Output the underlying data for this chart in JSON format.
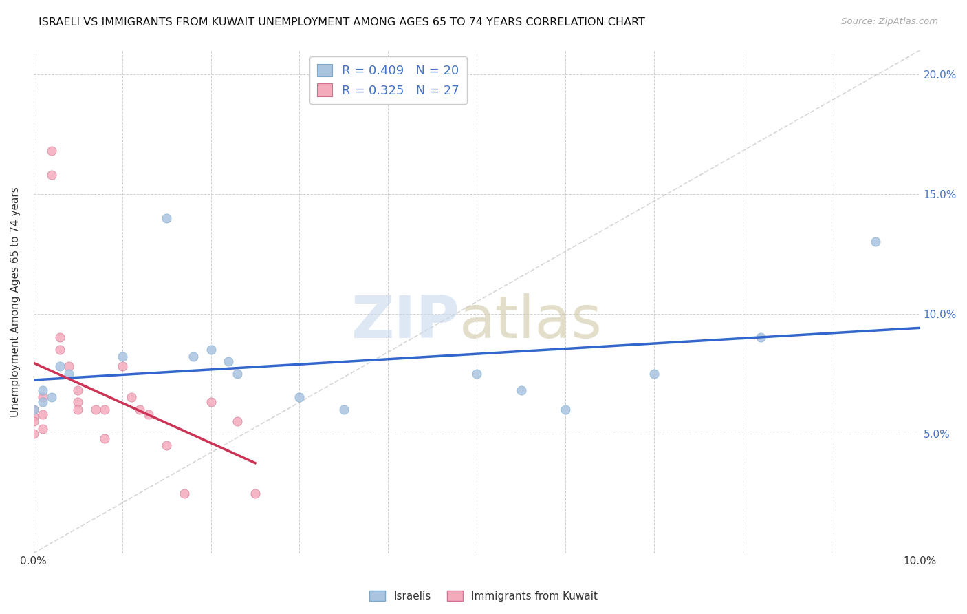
{
  "title": "ISRAELI VS IMMIGRANTS FROM KUWAIT UNEMPLOYMENT AMONG AGES 65 TO 74 YEARS CORRELATION CHART",
  "source": "Source: ZipAtlas.com",
  "xlabel": "",
  "ylabel": "Unemployment Among Ages 65 to 74 years",
  "xlim": [
    0.0,
    0.1
  ],
  "ylim": [
    0.0,
    0.21
  ],
  "xticks": [
    0.0,
    0.01,
    0.02,
    0.03,
    0.04,
    0.05,
    0.06,
    0.07,
    0.08,
    0.09,
    0.1
  ],
  "xtick_labels": [
    "0.0%",
    "",
    "",
    "",
    "",
    "",
    "",
    "",
    "",
    "",
    "10.0%"
  ],
  "yticks": [
    0.0,
    0.05,
    0.1,
    0.15,
    0.2
  ],
  "ytick_labels": [
    "",
    "5.0%",
    "10.0%",
    "15.0%",
    "20.0%"
  ],
  "israelis_x": [
    0.0,
    0.001,
    0.001,
    0.002,
    0.003,
    0.004,
    0.01,
    0.015,
    0.018,
    0.02,
    0.022,
    0.023,
    0.03,
    0.035,
    0.05,
    0.055,
    0.06,
    0.07,
    0.082,
    0.095
  ],
  "israelis_y": [
    0.06,
    0.063,
    0.068,
    0.065,
    0.078,
    0.075,
    0.082,
    0.14,
    0.082,
    0.085,
    0.08,
    0.075,
    0.065,
    0.06,
    0.075,
    0.068,
    0.06,
    0.075,
    0.09,
    0.13
  ],
  "kuwait_x": [
    0.0,
    0.0,
    0.0,
    0.0,
    0.001,
    0.001,
    0.001,
    0.002,
    0.002,
    0.003,
    0.003,
    0.004,
    0.005,
    0.005,
    0.005,
    0.007,
    0.008,
    0.008,
    0.01,
    0.011,
    0.012,
    0.013,
    0.015,
    0.017,
    0.02,
    0.023,
    0.025
  ],
  "kuwait_y": [
    0.06,
    0.057,
    0.055,
    0.05,
    0.065,
    0.058,
    0.052,
    0.168,
    0.158,
    0.09,
    0.085,
    0.078,
    0.068,
    0.063,
    0.06,
    0.06,
    0.06,
    0.048,
    0.078,
    0.065,
    0.06,
    0.058,
    0.045,
    0.025,
    0.063,
    0.055,
    0.025
  ],
  "israeli_color": "#aac4e0",
  "kuwait_color": "#f4aabb",
  "israeli_line_color": "#3366cc",
  "kuwait_line_color": "#cc3355",
  "diagonal_color": "#cccccc",
  "r_israeli": 0.409,
  "n_israeli": 20,
  "r_kuwait": 0.325,
  "n_kuwait": 27,
  "legend_text_color": "#4472c4",
  "marker_size": 90,
  "background_color": "#ffffff"
}
